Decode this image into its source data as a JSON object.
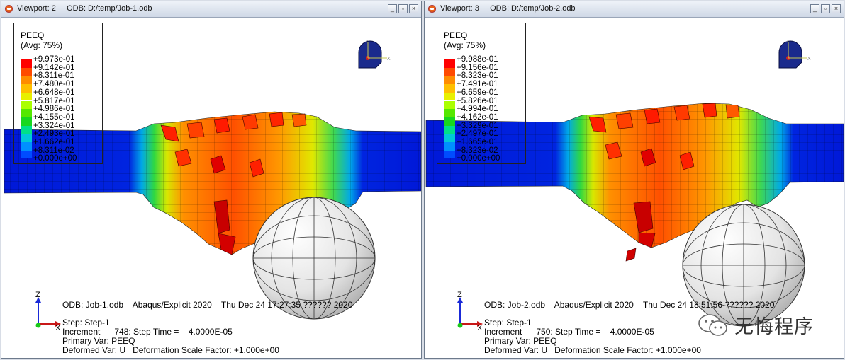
{
  "viewports": [
    {
      "id": "vp1",
      "title": "Viewport: 2     ODB: D:/temp/Job-1.odb",
      "legend": {
        "title": "PEEQ",
        "subtitle": "(Avg: 75%)",
        "values": [
          "+9.973e-01",
          "+9.142e-01",
          "+8.311e-01",
          "+7.480e-01",
          "+6.648e-01",
          "+5.817e-01",
          "+4.986e-01",
          "+4.155e-01",
          "+3.324e-01",
          "+2.493e-01",
          "+1.662e-01",
          "+8.311e-02",
          "+0.000e+00"
        ]
      },
      "info": {
        "odb": "ODB: Job-1.odb    Abaqus/Explicit 2020    Thu Dec 24 17:27:35 ?????? 2020",
        "step": "Step: Step-1",
        "increment": "Increment      748: Step Time =    4.0000E-05",
        "primary": "Primary Var: PEEQ",
        "deformed": "Deformed Var: U   Deformation Scale Factor: +1.000e+00"
      }
    },
    {
      "id": "vp2",
      "title": "Viewport: 3     ODB: D:/temp/Job-2.odb",
      "legend": {
        "title": "PEEQ",
        "subtitle": "(Avg: 75%)",
        "values": [
          "+9.988e-01",
          "+9.156e-01",
          "+8.323e-01",
          "+7.491e-01",
          "+6.659e-01",
          "+5.826e-01",
          "+4.994e-01",
          "+4.162e-01",
          "+3.329e-01",
          "+2.497e-01",
          "+1.665e-01",
          "+8.323e-02",
          "+0.000e+00"
        ]
      },
      "info": {
        "odb": "ODB: Job-2.odb    Abaqus/Explicit 2020    Thu Dec 24 18:51:56 ?????? 2020",
        "step": "Step: Step-1",
        "increment": "Increment      750: Step Time =    4.0000E-05",
        "primary": "Primary Var: PEEQ",
        "deformed": "Deformed Var: U   Deformation Scale Factor: +1.000e+00"
      }
    }
  ],
  "legend_colors": [
    "#ff0000",
    "#ff4a00",
    "#ff8c00",
    "#ffbf00",
    "#e8f000",
    "#aaff00",
    "#55e800",
    "#18d81e",
    "#00e088",
    "#00c8d8",
    "#0090ff",
    "#004cff",
    "#0000ff"
  ],
  "triad": {
    "x": "X",
    "y": "Y",
    "z": "Z"
  },
  "watermark": "无悔程序",
  "icons": {
    "minimize": "minimize-icon",
    "restore": "restore-icon",
    "close": "close-icon",
    "wechat": "wechat-icon"
  }
}
